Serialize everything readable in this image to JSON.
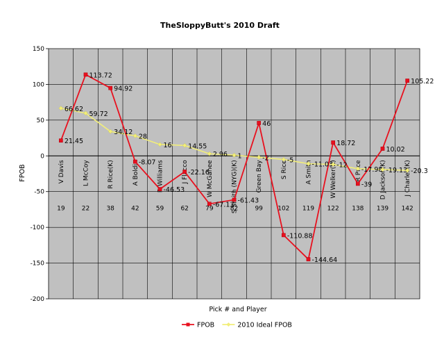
{
  "chart_data": {
    "type": "line",
    "title": "TheSloppyButt's 2010 Draft",
    "xlabel": "Pick # and Player",
    "ylabel": "FPOB",
    "ylim": [
      -200,
      150
    ],
    "yticks": [
      150,
      100,
      50,
      0,
      -50,
      -100,
      -150,
      -200
    ],
    "categories": [
      {
        "pick": "19",
        "player": "V Davis"
      },
      {
        "pick": "22",
        "player": "L McCoy"
      },
      {
        "pick": "38",
        "player": "R Rice(K)"
      },
      {
        "pick": "42",
        "player": "A Boldin"
      },
      {
        "pick": "59",
        "player": "R Williams"
      },
      {
        "pick": "62",
        "player": "J Flacco"
      },
      {
        "pick": "79",
        "player": "W McGahee"
      },
      {
        "pick": "82",
        "player": "S Smith (NYG)(K)"
      },
      {
        "pick": "99",
        "player": "Green Bay"
      },
      {
        "pick": "102",
        "player": "S Rice"
      },
      {
        "pick": "119",
        "player": "A Smith"
      },
      {
        "pick": "122",
        "player": "W Welker(K)"
      },
      {
        "pick": "138",
        "player": "R Price"
      },
      {
        "pick": "139",
        "player": "D Jackson(K)"
      },
      {
        "pick": "142",
        "player": "J Charles(K)"
      }
    ],
    "series": [
      {
        "name": "FPOB",
        "color": "#e8101e",
        "marker": "square",
        "values": [
          21.45,
          113.72,
          94.92,
          -8.07,
          -46.53,
          -22.16,
          -67.13,
          -61.43,
          46,
          -110.88,
          -144.64,
          18.72,
          -39,
          10.02,
          105.22
        ],
        "labels": [
          "21.45",
          "113.72",
          "94.92",
          "-8.07",
          "-46.53",
          "-22.16",
          "-67.13",
          "-61.43",
          "46",
          "-110.88",
          "-144.64",
          "18.72",
          "-39",
          "10.02",
          "105.22"
        ]
      },
      {
        "name": "2010 Ideal FPOB",
        "color": "#f2ee7a",
        "marker": "diamond",
        "values": [
          66.62,
          59.72,
          34.12,
          28,
          16,
          14.55,
          2.96,
          1,
          -2,
          -5,
          -11.03,
          -12,
          -17.98,
          -19.13,
          -20.3
        ],
        "labels": [
          "66.62",
          "59.72",
          "34.12",
          "28",
          "16",
          "14.55",
          "2.96",
          "1",
          "-2",
          "-5",
          "-11.03",
          "-12",
          "-17.98",
          "-19.13",
          "-20.3"
        ]
      }
    ],
    "grid": true,
    "legend": "bottom",
    "plot_background": "#c0c0c0"
  }
}
